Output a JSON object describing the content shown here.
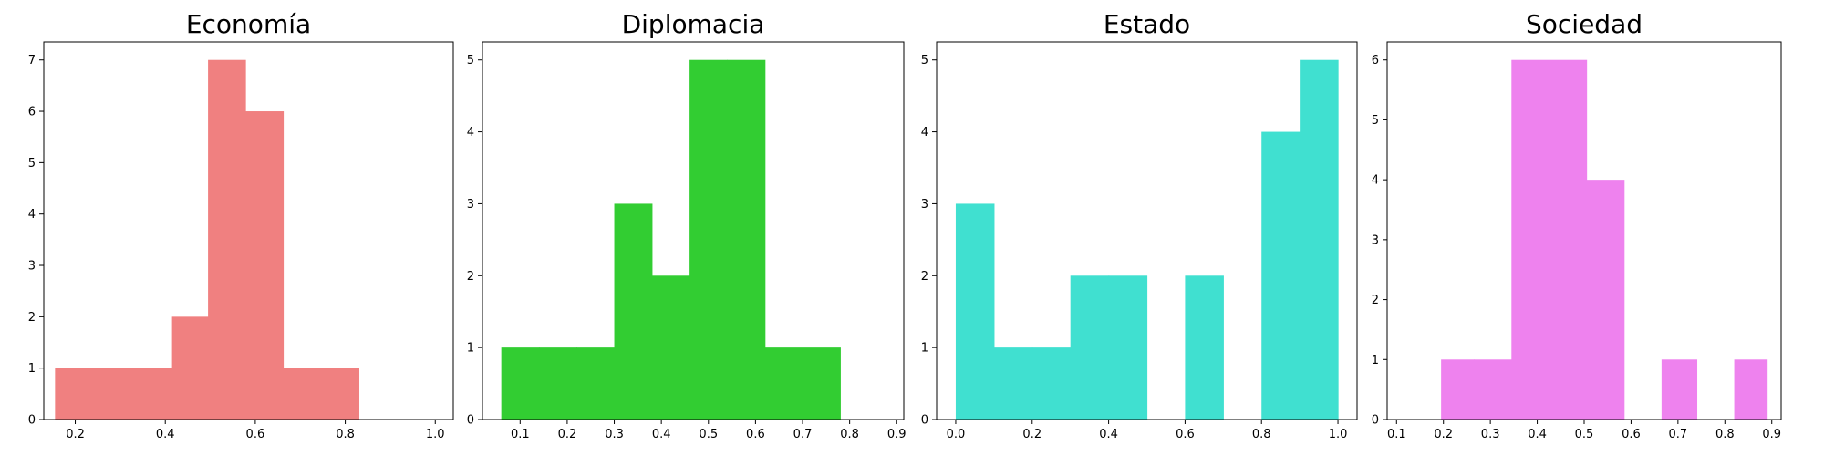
{
  "chart_data": [
    {
      "type": "bar",
      "title": "Economía",
      "color": "#f08080",
      "xlim": [
        0.13,
        1.04
      ],
      "ylim": [
        0,
        7.35
      ],
      "xticks": [
        0.2,
        0.4,
        0.6,
        0.8,
        1.0
      ],
      "xtick_labels": [
        "0.2",
        "0.4",
        "0.6",
        "0.8",
        "1.0"
      ],
      "yticks": [
        0,
        1,
        2,
        3,
        4,
        5,
        6,
        7
      ],
      "ytick_labels": [
        "0",
        "1",
        "2",
        "3",
        "4",
        "5",
        "6",
        "7"
      ],
      "bins": [
        {
          "x0": 0.155,
          "x1": 0.245,
          "count": 1
        },
        {
          "x0": 0.245,
          "x1": 0.33,
          "count": 1
        },
        {
          "x0": 0.33,
          "x1": 0.415,
          "count": 1
        },
        {
          "x0": 0.415,
          "x1": 0.495,
          "count": 2
        },
        {
          "x0": 0.495,
          "x1": 0.578,
          "count": 7
        },
        {
          "x0": 0.578,
          "x1": 0.662,
          "count": 6
        },
        {
          "x0": 0.662,
          "x1": 0.745,
          "count": 1
        },
        {
          "x0": 0.745,
          "x1": 0.83,
          "count": 1
        }
      ]
    },
    {
      "type": "bar",
      "title": "Diplomacia",
      "color": "#32cd32",
      "xlim": [
        0.02,
        0.915
      ],
      "ylim": [
        0,
        5.25
      ],
      "xticks": [
        0.1,
        0.2,
        0.3,
        0.4,
        0.5,
        0.6,
        0.7,
        0.8,
        0.9
      ],
      "xtick_labels": [
        "0.1",
        "0.2",
        "0.3",
        "0.4",
        "0.5",
        "0.6",
        "0.7",
        "0.8",
        "0.9"
      ],
      "yticks": [
        0,
        1,
        2,
        3,
        4,
        5
      ],
      "ytick_labels": [
        "0",
        "1",
        "2",
        "3",
        "4",
        "5"
      ],
      "bins": [
        {
          "x0": 0.06,
          "x1": 0.14,
          "count": 1
        },
        {
          "x0": 0.14,
          "x1": 0.22,
          "count": 1
        },
        {
          "x0": 0.22,
          "x1": 0.3,
          "count": 1
        },
        {
          "x0": 0.3,
          "x1": 0.38,
          "count": 3
        },
        {
          "x0": 0.38,
          "x1": 0.46,
          "count": 2
        },
        {
          "x0": 0.46,
          "x1": 0.54,
          "count": 5
        },
        {
          "x0": 0.54,
          "x1": 0.62,
          "count": 5
        },
        {
          "x0": 0.62,
          "x1": 0.7,
          "count": 1
        },
        {
          "x0": 0.7,
          "x1": 0.78,
          "count": 1
        }
      ]
    },
    {
      "type": "bar",
      "title": "Estado",
      "color": "#40e0d0",
      "xlim": [
        -0.05,
        1.05
      ],
      "ylim": [
        0,
        5.25
      ],
      "xticks": [
        0.0,
        0.2,
        0.4,
        0.6,
        0.8,
        1.0
      ],
      "xtick_labels": [
        "0.0",
        "0.2",
        "0.4",
        "0.6",
        "0.8",
        "1.0"
      ],
      "yticks": [
        0,
        1,
        2,
        3,
        4,
        5
      ],
      "ytick_labels": [
        "0",
        "1",
        "2",
        "3",
        "4",
        "5"
      ],
      "bins": [
        {
          "x0": 0.0,
          "x1": 0.1,
          "count": 3
        },
        {
          "x0": 0.1,
          "x1": 0.2,
          "count": 1
        },
        {
          "x0": 0.2,
          "x1": 0.3,
          "count": 1
        },
        {
          "x0": 0.3,
          "x1": 0.4,
          "count": 2
        },
        {
          "x0": 0.4,
          "x1": 0.5,
          "count": 2
        },
        {
          "x0": 0.5,
          "x1": 0.6,
          "count": 0
        },
        {
          "x0": 0.6,
          "x1": 0.7,
          "count": 2
        },
        {
          "x0": 0.7,
          "x1": 0.8,
          "count": 0
        },
        {
          "x0": 0.8,
          "x1": 0.9,
          "count": 4
        },
        {
          "x0": 0.9,
          "x1": 1.0,
          "count": 5
        }
      ]
    },
    {
      "type": "bar",
      "title": "Sociedad",
      "color": "#ee82ee",
      "xlim": [
        0.08,
        0.92
      ],
      "ylim": [
        0,
        6.3
      ],
      "xticks": [
        0.1,
        0.2,
        0.3,
        0.4,
        0.5,
        0.6,
        0.7,
        0.8,
        0.9
      ],
      "xtick_labels": [
        "0.1",
        "0.2",
        "0.3",
        "0.4",
        "0.5",
        "0.6",
        "0.7",
        "0.8",
        "0.9"
      ],
      "yticks": [
        0,
        1,
        2,
        3,
        4,
        5,
        6
      ],
      "ytick_labels": [
        "0",
        "1",
        "2",
        "3",
        "4",
        "5",
        "6"
      ],
      "bins": [
        {
          "x0": 0.195,
          "x1": 0.265,
          "count": 1
        },
        {
          "x0": 0.265,
          "x1": 0.345,
          "count": 1
        },
        {
          "x0": 0.345,
          "x1": 0.425,
          "count": 6
        },
        {
          "x0": 0.425,
          "x1": 0.505,
          "count": 6
        },
        {
          "x0": 0.505,
          "x1": 0.585,
          "count": 4
        },
        {
          "x0": 0.585,
          "x1": 0.665,
          "count": 0
        },
        {
          "x0": 0.665,
          "x1": 0.74,
          "count": 1
        },
        {
          "x0": 0.74,
          "x1": 0.82,
          "count": 0
        },
        {
          "x0": 0.82,
          "x1": 0.89,
          "count": 1
        }
      ]
    }
  ]
}
